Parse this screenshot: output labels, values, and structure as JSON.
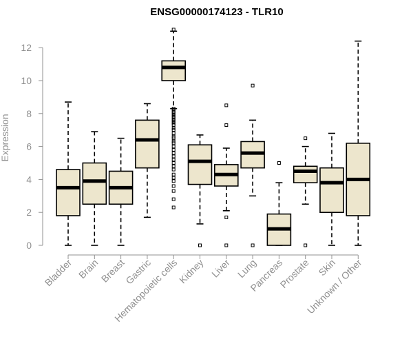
{
  "chart_data": {
    "type": "box",
    "title": "ENSG00000174123 - TLR10",
    "ylabel": "Expression",
    "xlabel": "",
    "ylim": [
      0,
      13
    ],
    "yticks": [
      0,
      2,
      4,
      6,
      8,
      10,
      12
    ],
    "grid": false,
    "colors": {
      "box_fill": "#ede6cd",
      "stroke": "#000000",
      "axis": "#909090"
    },
    "categories": [
      "Bladder",
      "Brain",
      "Breast",
      "Gastric",
      "Hematopoietic cells",
      "Kidney",
      "Liver",
      "Lung",
      "Pancreas",
      "Prostate",
      "Skin",
      "Unknown / Other"
    ],
    "boxes": [
      {
        "category": "Bladder",
        "whisker_low": 0.0,
        "q1": 1.8,
        "median": 3.5,
        "q3": 4.6,
        "whisker_high": 8.7,
        "outliers": []
      },
      {
        "category": "Brain",
        "whisker_low": 0.0,
        "q1": 2.5,
        "median": 3.9,
        "q3": 5.0,
        "whisker_high": 6.9,
        "outliers": []
      },
      {
        "category": "Breast",
        "whisker_low": 0.0,
        "q1": 2.5,
        "median": 3.5,
        "q3": 4.5,
        "whisker_high": 6.5,
        "outliers": []
      },
      {
        "category": "Gastric",
        "whisker_low": 1.7,
        "q1": 4.7,
        "median": 6.4,
        "q3": 7.6,
        "whisker_high": 8.6,
        "outliers": []
      },
      {
        "category": "Hematopoietic cells",
        "whisker_low": 8.3,
        "q1": 10.0,
        "median": 10.8,
        "q3": 11.2,
        "whisker_high": 13.0,
        "outliers": [
          2.3,
          2.8,
          3.3,
          3.6,
          3.9,
          4.1,
          4.3,
          4.6,
          4.8,
          5.0,
          5.2,
          5.4,
          5.6,
          5.8,
          6.0,
          6.2,
          6.3,
          6.5,
          6.6,
          6.8,
          7.0,
          7.1,
          7.3,
          7.4,
          7.5,
          7.6,
          7.7,
          7.8,
          7.9,
          8.0,
          8.1,
          8.2,
          8.3,
          13.1
        ]
      },
      {
        "category": "Kidney",
        "whisker_low": 1.3,
        "q1": 3.7,
        "median": 5.1,
        "q3": 6.1,
        "whisker_high": 6.7,
        "outliers": [
          0.0
        ]
      },
      {
        "category": "Liver",
        "whisker_low": 2.1,
        "q1": 3.6,
        "median": 4.3,
        "q3": 4.9,
        "whisker_high": 5.9,
        "outliers": [
          0.0,
          1.7,
          7.3,
          8.5
        ]
      },
      {
        "category": "Lung",
        "whisker_low": 3.0,
        "q1": 4.7,
        "median": 5.6,
        "q3": 6.3,
        "whisker_high": 7.6,
        "outliers": [
          0.0,
          9.7
        ]
      },
      {
        "category": "Pancreas",
        "whisker_low": 0.0,
        "q1": 0.0,
        "median": 1.0,
        "q3": 1.9,
        "whisker_high": 3.8,
        "outliers": [
          5.0
        ]
      },
      {
        "category": "Prostate",
        "whisker_low": 2.5,
        "q1": 3.8,
        "median": 4.5,
        "q3": 4.8,
        "whisker_high": 6.0,
        "outliers": [
          0.0,
          6.5
        ]
      },
      {
        "category": "Skin",
        "whisker_low": 0.0,
        "q1": 2.0,
        "median": 3.8,
        "q3": 4.7,
        "whisker_high": 6.8,
        "outliers": []
      },
      {
        "category": "Unknown / Other",
        "whisker_low": 0.0,
        "q1": 1.8,
        "median": 4.0,
        "q3": 6.2,
        "whisker_high": 12.4,
        "outliers": []
      }
    ]
  }
}
